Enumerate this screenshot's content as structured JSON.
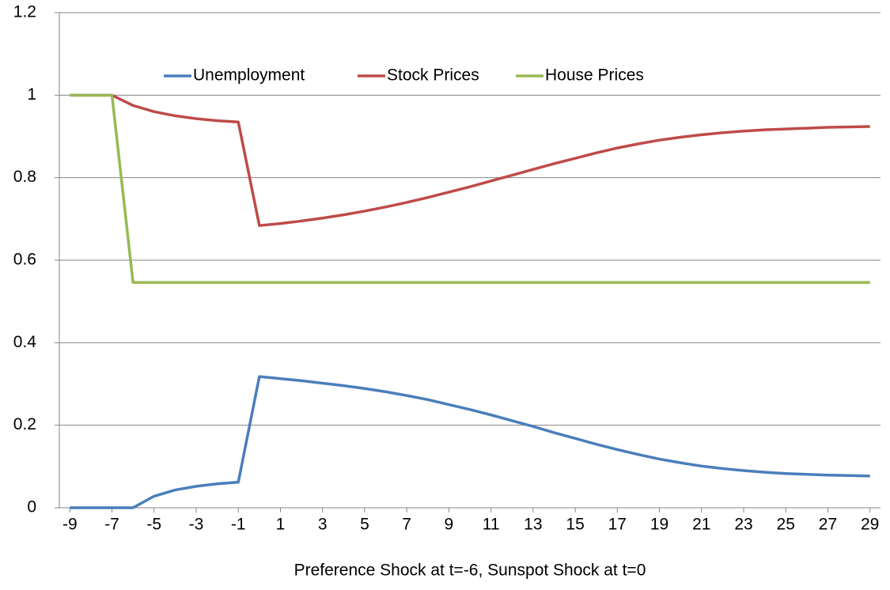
{
  "chart_data": {
    "type": "line",
    "x_label": "Preference Shock at t=-6, Sunspot Shock at t=0",
    "x": [
      -9,
      -8,
      -7,
      -6,
      -5,
      -4,
      -3,
      -2,
      -1,
      0,
      1,
      2,
      3,
      4,
      5,
      6,
      7,
      8,
      9,
      10,
      11,
      12,
      13,
      14,
      15,
      16,
      17,
      18,
      19,
      20,
      21,
      22,
      23,
      24,
      25,
      26,
      27,
      28,
      29
    ],
    "xlim": [
      -9.5,
      29.5
    ],
    "xticks": [
      -9,
      -7,
      -5,
      -3,
      -1,
      1,
      3,
      5,
      7,
      9,
      11,
      13,
      15,
      17,
      19,
      21,
      23,
      25,
      27,
      29
    ],
    "ylim": [
      0,
      1.2
    ],
    "yticks": [
      0,
      0.2,
      0.4,
      0.6,
      0.8,
      1,
      1.2
    ],
    "grid": true,
    "legend": "top",
    "series": [
      {
        "name": "Unemployment",
        "color": "#4a7ebb",
        "values": [
          0,
          0,
          0,
          0,
          0.028,
          0.043,
          0.052,
          0.058,
          0.062,
          0.318,
          0.313,
          0.308,
          0.302,
          0.296,
          0.289,
          0.281,
          0.272,
          0.262,
          0.25,
          0.238,
          0.225,
          0.211,
          0.197,
          0.182,
          0.168,
          0.154,
          0.141,
          0.129,
          0.118,
          0.109,
          0.101,
          0.095,
          0.09,
          0.086,
          0.083,
          0.081,
          0.079,
          0.078,
          0.077
        ]
      },
      {
        "name": "Stock Prices",
        "color": "#be4b48",
        "values": [
          1,
          1,
          1,
          0.975,
          0.96,
          0.95,
          0.943,
          0.938,
          0.935,
          0.684,
          0.689,
          0.695,
          0.702,
          0.71,
          0.719,
          0.729,
          0.74,
          0.752,
          0.765,
          0.778,
          0.792,
          0.806,
          0.82,
          0.834,
          0.847,
          0.86,
          0.872,
          0.882,
          0.891,
          0.898,
          0.904,
          0.909,
          0.913,
          0.916,
          0.918,
          0.92,
          0.922,
          0.923,
          0.924
        ]
      },
      {
        "name": "House Prices",
        "color": "#98b954",
        "values": [
          1,
          1,
          1,
          0.546,
          0.546,
          0.546,
          0.546,
          0.546,
          0.546,
          0.546,
          0.546,
          0.546,
          0.546,
          0.546,
          0.546,
          0.546,
          0.546,
          0.546,
          0.546,
          0.546,
          0.546,
          0.546,
          0.546,
          0.546,
          0.546,
          0.546,
          0.546,
          0.546,
          0.546,
          0.546,
          0.546,
          0.546,
          0.546,
          0.546,
          0.546,
          0.546,
          0.546,
          0.546,
          0.546
        ]
      }
    ]
  }
}
